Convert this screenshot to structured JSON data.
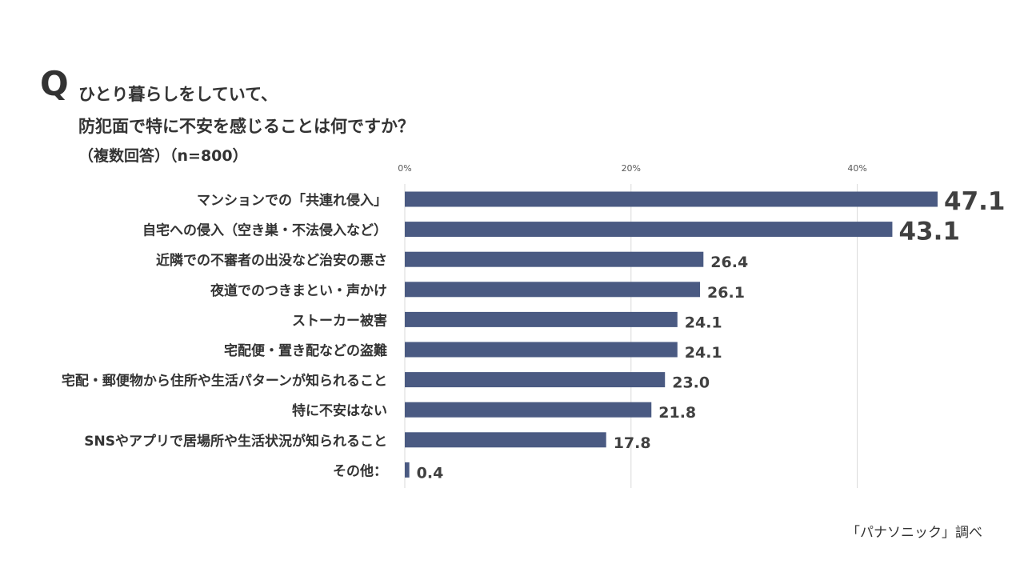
{
  "question": {
    "mark": "Q",
    "line1": "ひとり暮らしをしていて、",
    "line2": "防犯面で特に不安を感じることは何ですか？",
    "note": "（複数回答）（n=800）"
  },
  "source": "「パナソニック」調べ",
  "colors": {
    "bar": "#4a5a82",
    "grid": "#d9d9d9",
    "text": "#333333"
  },
  "chart_data": {
    "type": "bar",
    "orientation": "horizontal",
    "title": "",
    "xlabel": "",
    "ylabel": "",
    "xlim": [
      0,
      47.1
    ],
    "ticks": [
      0,
      20,
      40
    ],
    "tick_labels": [
      "0%",
      "20%",
      "40%"
    ],
    "grid": true,
    "categories": [
      "マンションでの「共連れ侵入」",
      "自宅への侵入（空き巣・不法侵入など）",
      "近隣での不審者の出没など治安の悪さ",
      "夜道でのつきまとい・声かけ",
      "ストーカー被害",
      "宅配便・置き配などの盗難",
      "宅配・郵便物から住所や生活パターンが知られること",
      "特に不安はない",
      "SNSやアプリで居場所や生活状況が知られること",
      "その他："
    ],
    "values": [
      47.1,
      43.1,
      26.4,
      26.1,
      24.1,
      24.1,
      23.0,
      21.8,
      17.8,
      0.4
    ],
    "value_labels": [
      "47.1",
      "43.1",
      "26.4",
      "26.1",
      "24.1",
      "24.1",
      "23.0",
      "21.8",
      "17.8",
      "0.4"
    ]
  }
}
